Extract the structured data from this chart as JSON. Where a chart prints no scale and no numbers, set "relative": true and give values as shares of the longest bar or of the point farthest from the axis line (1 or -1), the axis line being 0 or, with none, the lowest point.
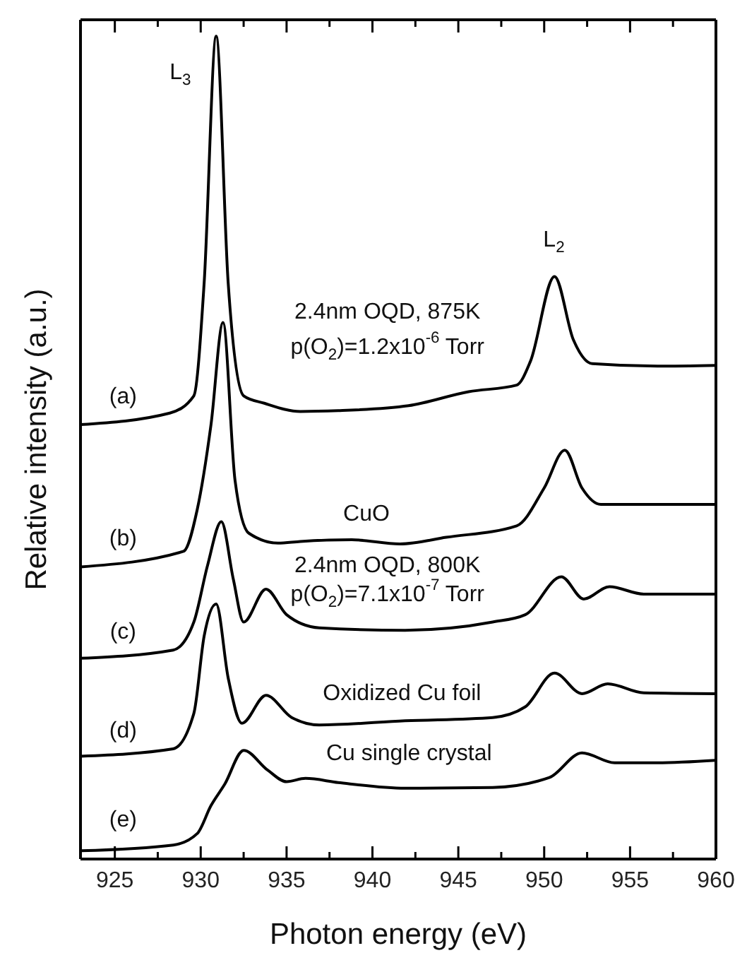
{
  "chart_data": {
    "type": "line",
    "relative": true,
    "xlabel": "Photon energy (eV)",
    "ylabel": "Relative intensity (a.u.)",
    "xlim": [
      923,
      960
    ],
    "xticks": [
      925,
      {
        "value": 927.5,
        "label": null
      },
      930,
      {
        "value": 932.5,
        "label": null
      },
      935,
      {
        "value": 937.5,
        "label": null
      },
      940,
      {
        "value": 942.5,
        "label": null
      },
      945,
      {
        "value": 947.5,
        "label": null
      },
      950,
      {
        "value": 952.5,
        "label": null
      },
      955,
      {
        "value": 957.5,
        "label": null
      },
      960
    ],
    "series": [
      {
        "color": "#000000",
        "x": [
          923,
          928.2,
          929.6,
          930.2,
          930.9,
          931.6,
          932.5,
          933.7,
          935.8,
          938,
          942.1,
          945.6,
          948.4,
          949.2,
          950.6,
          951.7,
          952.8,
          956.6,
          960
        ],
        "values": [
          0.528,
          0.542,
          0.563,
          0.7,
          1.0,
          0.7,
          0.563,
          0.554,
          0.544,
          0.545,
          0.551,
          0.568,
          0.576,
          0.605,
          0.708,
          0.631,
          0.602,
          0.599,
          0.6
        ]
      },
      {
        "color": "#000000",
        "x": [
          923,
          929,
          929.8,
          930.6,
          931.3,
          932,
          932.8,
          934.5,
          935.8,
          938.8,
          941.6,
          944.3,
          948.4,
          950,
          951.2,
          952.2,
          953.3,
          960
        ],
        "values": [
          0.355,
          0.374,
          0.425,
          0.528,
          0.652,
          0.46,
          0.396,
          0.384,
          0.386,
          0.388,
          0.383,
          0.391,
          0.405,
          0.451,
          0.497,
          0.451,
          0.431,
          0.431
        ]
      },
      {
        "color": "#000000",
        "x": [
          923,
          928.4,
          929.6,
          930.4,
          931.2,
          931.9,
          932.5,
          933.8,
          935,
          936.9,
          941.9,
          947,
          948.9,
          951,
          952.3,
          953.8,
          955.8,
          960
        ],
        "values": [
          0.244,
          0.254,
          0.288,
          0.357,
          0.41,
          0.34,
          0.288,
          0.328,
          0.297,
          0.281,
          0.278,
          0.288,
          0.297,
          0.343,
          0.316,
          0.331,
          0.322,
          0.322
        ]
      },
      {
        "color": "#000000",
        "x": [
          923,
          928.4,
          929.6,
          930.2,
          930.9,
          931.6,
          932.4,
          933.8,
          935.3,
          936.9,
          941.9,
          947,
          948.9,
          950.6,
          952.2,
          953.7,
          955.8,
          960
        ],
        "values": [
          0.125,
          0.134,
          0.177,
          0.271,
          0.31,
          0.22,
          0.165,
          0.199,
          0.172,
          0.163,
          0.168,
          0.172,
          0.185,
          0.226,
          0.201,
          0.213,
          0.202,
          0.201
        ]
      },
      {
        "color": "#000000",
        "x": [
          923,
          928.4,
          929.8,
          930.6,
          931.4,
          932.5,
          933.9,
          935,
          936.1,
          938,
          941.9,
          947,
          950.3,
          952.2,
          954.1,
          956.6,
          960
        ],
        "values": [
          0.01,
          0.017,
          0.031,
          0.065,
          0.091,
          0.132,
          0.108,
          0.094,
          0.098,
          0.093,
          0.086,
          0.087,
          0.099,
          0.129,
          0.117,
          0.117,
          0.12
        ]
      }
    ],
    "annotations": [
      "L$_{3}$",
      "L$_{2}$",
      "2.4nm OQD, 875K",
      "p(O$_{2}$)=1.2x10$^{-6}$ Torr",
      "(a)",
      "CuO",
      "(b)",
      "2.4nm OQD, 800K",
      "p(O$_{2}$)=7.1x10$^{-7}$ Torr",
      "(c)",
      "Oxidized Cu foil",
      "(d)",
      "Cu single crystal",
      "(e)"
    ]
  }
}
